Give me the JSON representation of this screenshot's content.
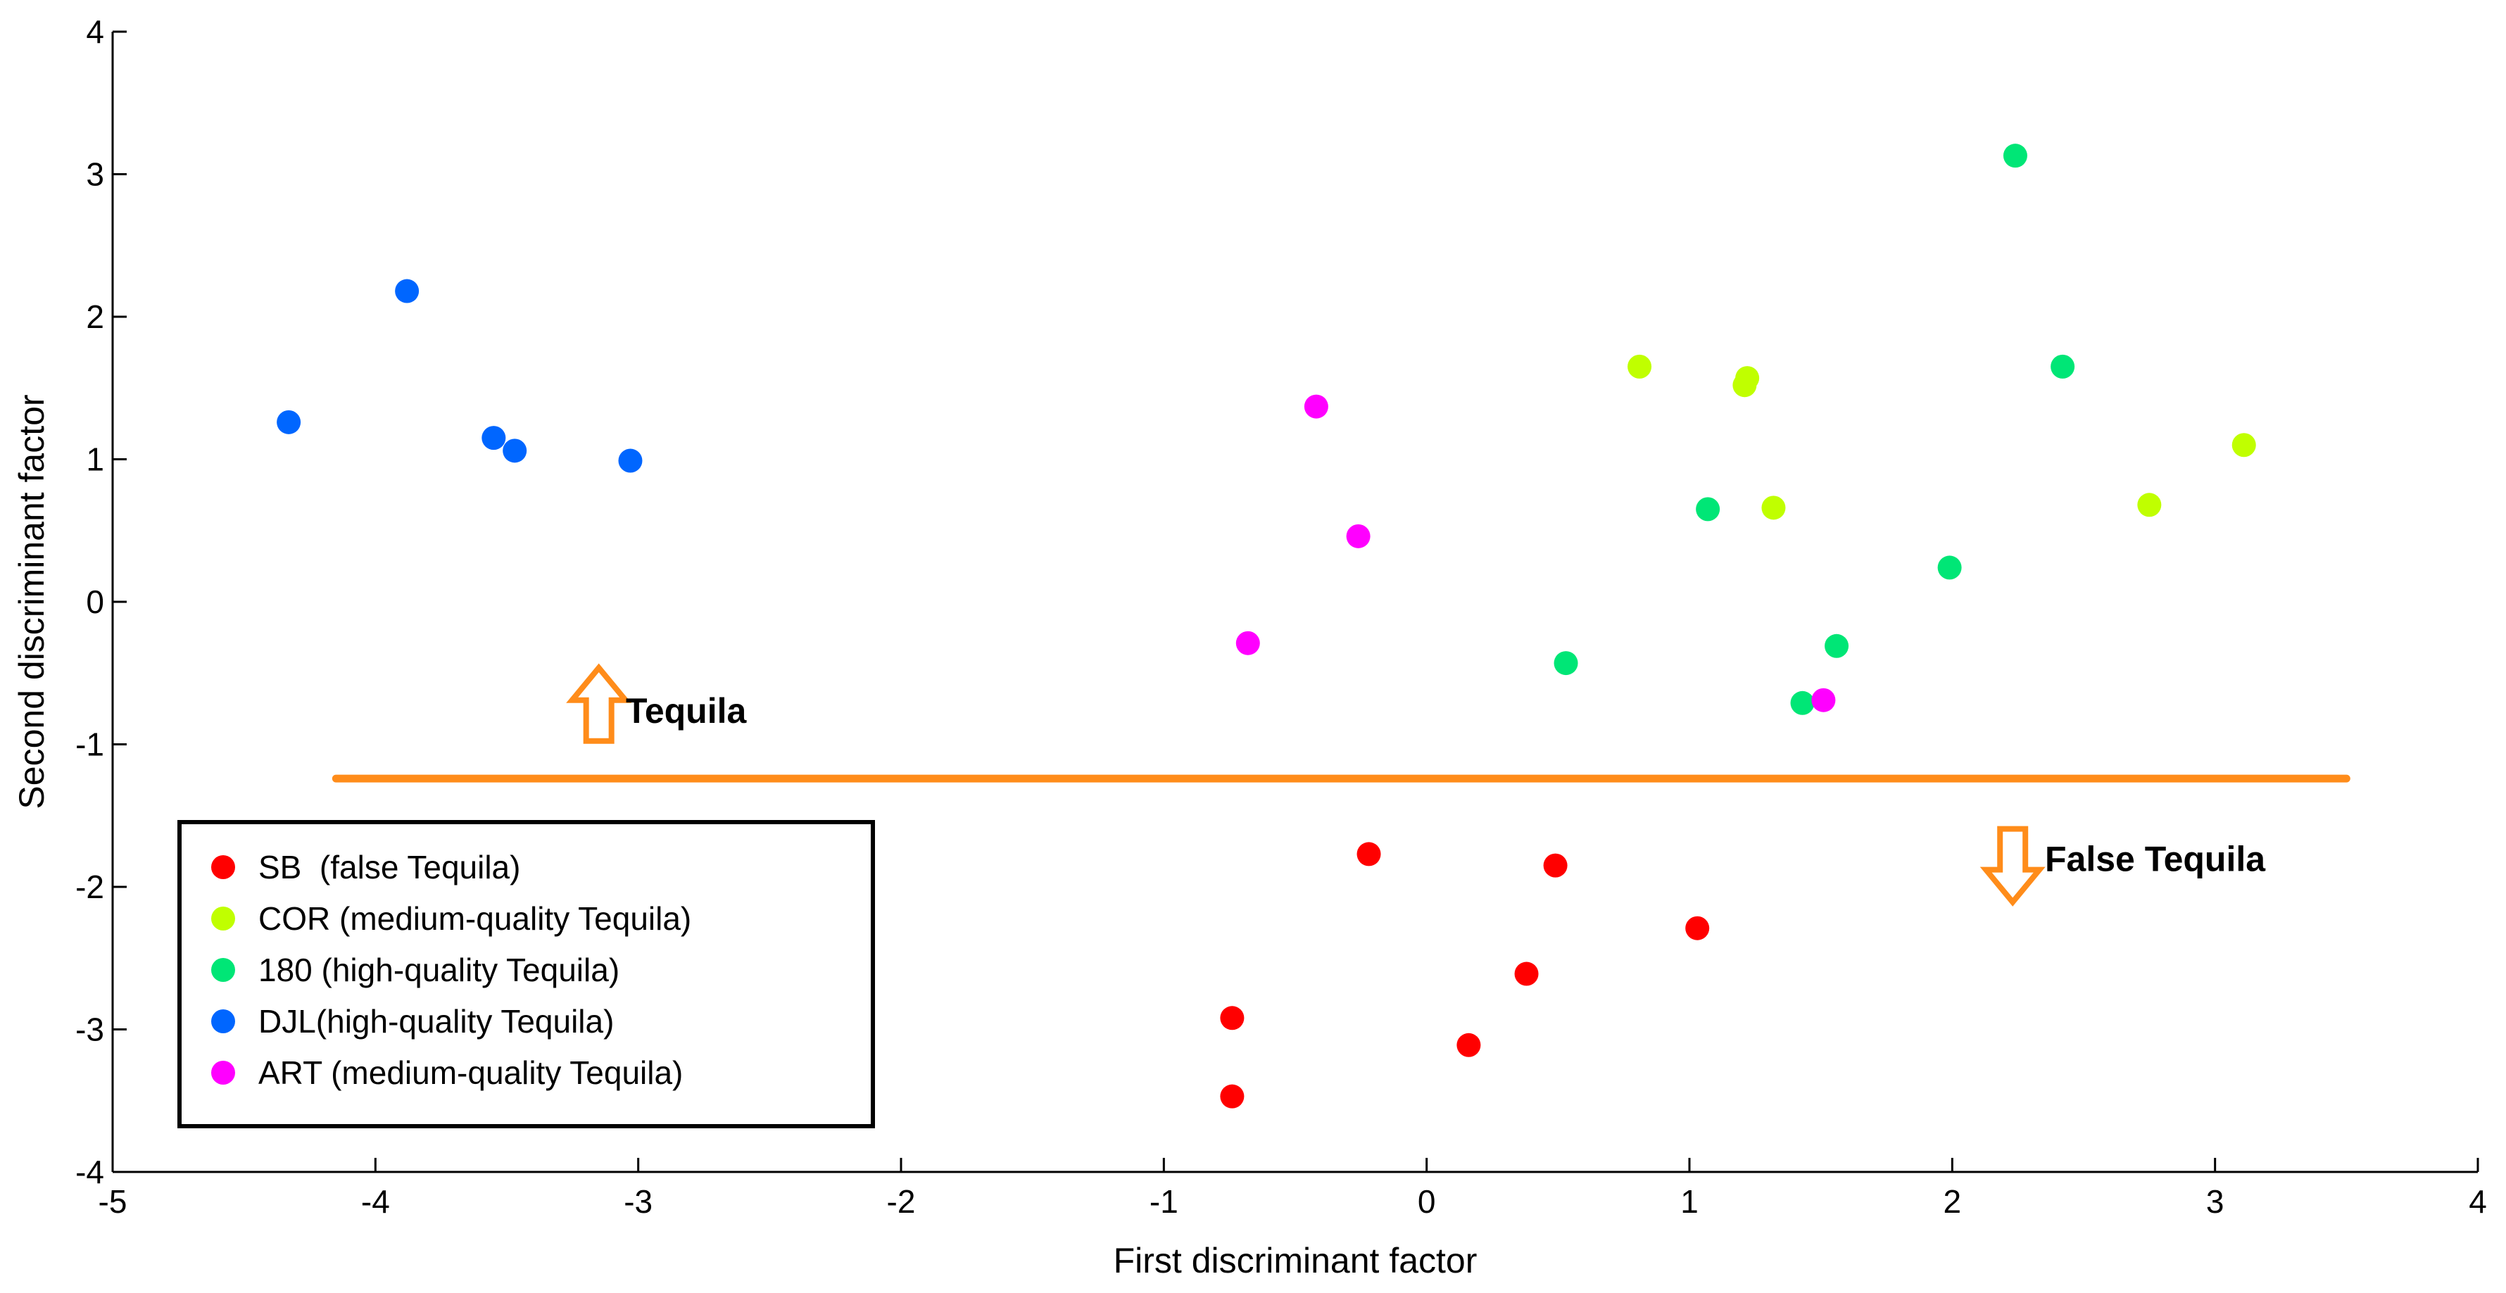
{
  "chart_data": {
    "type": "scatter",
    "xlabel": "First discriminant factor",
    "ylabel": "Second discriminant factor",
    "xlim": [
      -5,
      4
    ],
    "ylim": [
      -4,
      4
    ],
    "xticks": [
      -5,
      -4,
      -3,
      -2,
      -1,
      0,
      1,
      2,
      3,
      4
    ],
    "yticks": [
      -4,
      -3,
      -2,
      -1,
      0,
      1,
      2,
      3,
      4
    ],
    "grid": false,
    "legend_position": "bottom-left",
    "series": [
      {
        "name": "SB  (false Tequila)",
        "color": "#ff0000",
        "points": [
          [
            -0.22,
            -1.77
          ],
          [
            0.49,
            -1.85
          ],
          [
            1.03,
            -2.29
          ],
          [
            0.38,
            -2.61
          ],
          [
            -0.74,
            -2.92
          ],
          [
            0.16,
            -3.11
          ],
          [
            -0.74,
            -3.47
          ]
        ]
      },
      {
        "name": "COR (medium-quality Tequila)",
        "color": "#c0ff00",
        "points": [
          [
            0.81,
            1.65
          ],
          [
            1.22,
            1.57
          ],
          [
            1.21,
            1.52
          ],
          [
            3.11,
            1.1
          ],
          [
            1.32,
            0.66
          ],
          [
            2.75,
            0.68
          ]
        ]
      },
      {
        "name": "180 (high-quality Tequila)",
        "color": "#00e676",
        "points": [
          [
            2.24,
            3.13
          ],
          [
            2.42,
            1.65
          ],
          [
            1.07,
            0.65
          ],
          [
            1.99,
            0.24
          ],
          [
            0.53,
            -0.43
          ],
          [
            1.56,
            -0.31
          ],
          [
            1.43,
            -0.71
          ]
        ]
      },
      {
        "name": "DJL(high-quality Tequila)",
        "color": "#0066ff",
        "points": [
          [
            -3.88,
            2.18
          ],
          [
            -4.33,
            1.26
          ],
          [
            -3.55,
            1.15
          ],
          [
            -3.47,
            1.06
          ],
          [
            -3.03,
            0.99
          ]
        ]
      },
      {
        "name": "ART (medium-quality Tequila)",
        "color": "#ff00ff",
        "points": [
          [
            -0.42,
            1.37
          ],
          [
            -0.26,
            0.46
          ],
          [
            -0.68,
            -0.29
          ],
          [
            1.51,
            -0.69
          ]
        ]
      }
    ],
    "separator": {
      "y": -1.24,
      "x_from": -4.15,
      "x_to": 3.5,
      "color": "#ff8c1a"
    },
    "annotations": [
      {
        "text": "Tequila",
        "x": -2.9,
        "y": -0.76,
        "arrow": "up",
        "arrow_x": -3.15
      },
      {
        "text": "False Tequila",
        "x": 2.5,
        "y": -1.8,
        "arrow": "down",
        "arrow_x": 2.23
      }
    ]
  }
}
